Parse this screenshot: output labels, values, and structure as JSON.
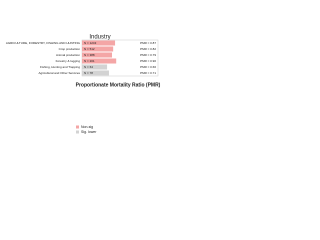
{
  "chart_data": {
    "type": "barh",
    "title": "Industry",
    "x_label": "Proportionate Mortality Ratio (PMR)",
    "categories": [
      "AGRICULTURE, FORESTRY, FISHING AND HUNTING",
      "Crop production",
      "Animal production",
      "Forestry & logging",
      "Fishing, Hunting and Trapping",
      "Agricultural and Other Services"
    ],
    "values": [
      0.87,
      0.82,
      0.79,
      0.9,
      0.66,
      0.71
    ],
    "value_labels": [
      "PMR = 0.87",
      "PMR = 0.82",
      "PMR = 0.79",
      "PMR = 0.90",
      "PMR = 0.66",
      "PMR = 0.71"
    ],
    "count_labels": [
      "N = 1243",
      "N = 512",
      "N = 388",
      "N = 201",
      "N = 64",
      "N = 78"
    ],
    "colors": [
      "#f4a6a6",
      "#f4a6a6",
      "#f4a6a6",
      "#f4a6a6",
      "#d3d3d3",
      "#d3d3d3"
    ],
    "xlim": [
      0,
      2
    ],
    "legend": [
      {
        "label": "Non-sig",
        "color": "#f4a6a6"
      },
      {
        "label": "Sig. lower",
        "color": "#d3d3d3"
      }
    ]
  }
}
